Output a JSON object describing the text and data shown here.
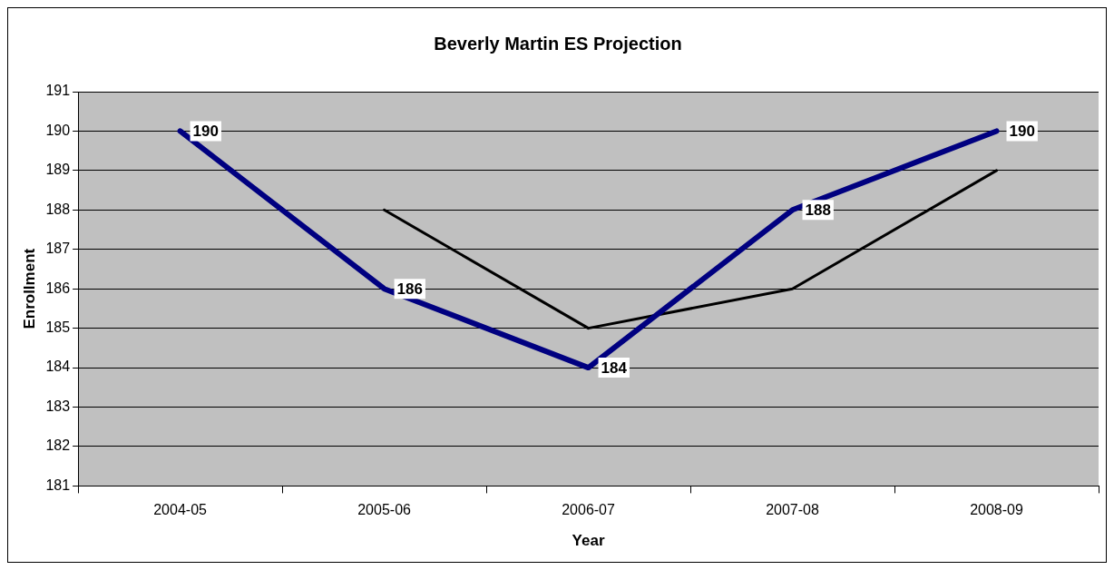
{
  "chart_data": {
    "type": "line",
    "title": "Beverly Martin ES Projection",
    "xlabel": "Year",
    "ylabel": "Enrollment",
    "categories": [
      "2004-05",
      "2005-06",
      "2006-07",
      "2007-08",
      "2008-09"
    ],
    "series": [
      {
        "color": "#000080",
        "values": [
          190,
          186,
          184,
          188,
          190
        ],
        "value_labels": [
          "190",
          "186",
          "184",
          "188",
          "190"
        ]
      },
      {
        "color": "#000000",
        "values": [
          null,
          188,
          185,
          186,
          189
        ]
      }
    ],
    "ylim": [
      181,
      191
    ],
    "yticks": [
      181,
      182,
      183,
      184,
      185,
      186,
      187,
      188,
      189,
      190,
      191
    ],
    "grid": "y",
    "legend": false,
    "marker": "none",
    "line_style": "solid"
  }
}
